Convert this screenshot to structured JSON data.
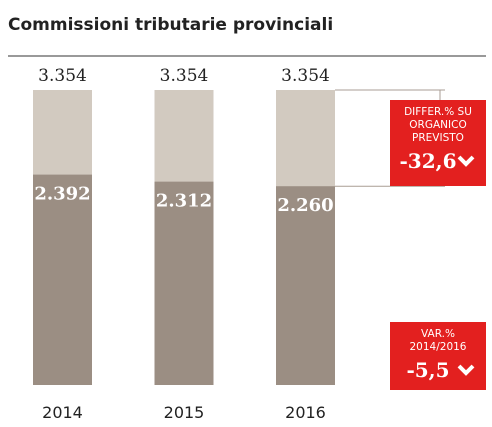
{
  "chart_data": {
    "type": "overlap-bar",
    "title": "Commissioni tributarie provinciali",
    "categories": [
      "2014",
      "2015",
      "2016"
    ],
    "series": [
      {
        "color": "#d2cac0",
        "values": [
          3354,
          3354,
          3354
        ],
        "value_labels": [
          "3.354",
          "3.354",
          "3.354"
        ]
      },
      {
        "color": "#9b8e83",
        "values": [
          2392,
          2312,
          2260
        ],
        "value_labels": [
          "2.392",
          "2.312",
          "2.260"
        ]
      }
    ],
    "annotations": [
      {
        "text": "DIFFER.% SU ORGANICO PREVISTO",
        "value": -32.6,
        "label": "-32,6"
      },
      {
        "text": "VAR.% 2014/2016",
        "value": -5.5,
        "label": "-5,5"
      }
    ],
    "annotation_color": "#e3201f"
  }
}
